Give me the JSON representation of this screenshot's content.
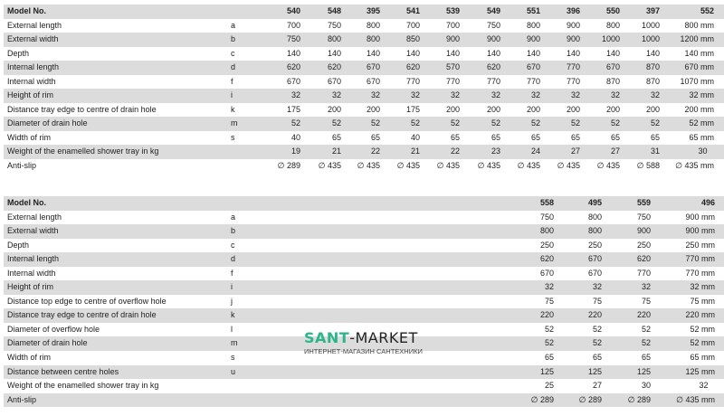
{
  "table1": {
    "rows": [
      {
        "label": "Model No.",
        "letter": "",
        "values": [
          "540",
          "548",
          "395",
          "541",
          "539",
          "549",
          "551",
          "396",
          "550",
          "397",
          "552"
        ]
      },
      {
        "label": "External length",
        "letter": "a",
        "values": [
          "700",
          "750",
          "800",
          "700",
          "700",
          "750",
          "800",
          "900",
          "800",
          "1000",
          "800 mm"
        ]
      },
      {
        "label": "External width",
        "letter": "b",
        "values": [
          "750",
          "800",
          "800",
          "850",
          "900",
          "900",
          "900",
          "900",
          "1000",
          "1000",
          "1200 mm"
        ]
      },
      {
        "label": "Depth",
        "letter": "c",
        "values": [
          "140",
          "140",
          "140",
          "140",
          "140",
          "140",
          "140",
          "140",
          "140",
          "140",
          "140 mm"
        ]
      },
      {
        "label": "Internal length",
        "letter": "d",
        "values": [
          "620",
          "620",
          "670",
          "620",
          "570",
          "620",
          "670",
          "770",
          "670",
          "870",
          "670 mm"
        ]
      },
      {
        "label": "Internal width",
        "letter": "f",
        "values": [
          "670",
          "670",
          "670",
          "770",
          "770",
          "770",
          "770",
          "770",
          "870",
          "870",
          "1070 mm"
        ]
      },
      {
        "label": "Height of rim",
        "letter": "i",
        "values": [
          "32",
          "32",
          "32",
          "32",
          "32",
          "32",
          "32",
          "32",
          "32",
          "32",
          "32 mm"
        ]
      },
      {
        "label": "Distance tray edge to centre of drain hole",
        "letter": "k",
        "values": [
          "175",
          "200",
          "200",
          "175",
          "200",
          "200",
          "200",
          "200",
          "200",
          "200",
          "200 mm"
        ]
      },
      {
        "label": "Diameter of drain hole",
        "letter": "m",
        "values": [
          "52",
          "52",
          "52",
          "52",
          "52",
          "52",
          "52",
          "52",
          "52",
          "52",
          "52 mm"
        ]
      },
      {
        "label": "Width of rim",
        "letter": "s",
        "values": [
          "40",
          "65",
          "65",
          "40",
          "65",
          "65",
          "65",
          "65",
          "65",
          "65",
          "65 mm"
        ]
      },
      {
        "label": "Weight of the enamelled shower tray in kg",
        "letter": "",
        "values": [
          "19",
          "21",
          "22",
          "21",
          "22",
          "23",
          "24",
          "27",
          "27",
          "31",
          "30   "
        ]
      },
      {
        "label": "Anti-slip",
        "letter": "",
        "values": [
          "∅ 289",
          "∅ 435",
          "∅ 435",
          "∅ 435",
          "∅ 435",
          "∅ 435",
          "∅ 435",
          "∅ 435",
          "∅ 435",
          "∅ 588",
          "∅ 435 mm"
        ]
      }
    ]
  },
  "table2": {
    "rows": [
      {
        "label": "Model No.",
        "letter": "",
        "values": [
          "558",
          "495",
          "559",
          "496"
        ]
      },
      {
        "label": "External length",
        "letter": "a",
        "values": [
          "750",
          "800",
          "750",
          "900 mm"
        ]
      },
      {
        "label": "External width",
        "letter": "b",
        "values": [
          "800",
          "800",
          "900",
          "900 mm"
        ]
      },
      {
        "label": "Depth",
        "letter": "c",
        "values": [
          "250",
          "250",
          "250",
          "250 mm"
        ]
      },
      {
        "label": "Internal length",
        "letter": "d",
        "values": [
          "620",
          "670",
          "620",
          "770 mm"
        ]
      },
      {
        "label": "Internal width",
        "letter": "f",
        "values": [
          "670",
          "670",
          "770",
          "770 mm"
        ]
      },
      {
        "label": "Height of rim",
        "letter": "i",
        "values": [
          "32",
          "32",
          "32",
          "32 mm"
        ]
      },
      {
        "label": "Distance top edge to centre of overflow hole",
        "letter": "j",
        "values": [
          "75",
          "75",
          "75",
          "75 mm"
        ]
      },
      {
        "label": "Distance tray edge to centre of drain hole",
        "letter": "k",
        "values": [
          "220",
          "220",
          "220",
          "220 mm"
        ]
      },
      {
        "label": "Diameter of overflow hole",
        "letter": "l",
        "values": [
          "52",
          "52",
          "52",
          "52 mm"
        ]
      },
      {
        "label": "Diameter of drain hole",
        "letter": "m",
        "values": [
          "52",
          "52",
          "52",
          "52 mm"
        ]
      },
      {
        "label": "Width of rim",
        "letter": "s",
        "values": [
          "65",
          "65",
          "65",
          "65 mm"
        ]
      },
      {
        "label": "Distance between centre holes",
        "letter": "u",
        "values": [
          "125",
          "125",
          "125",
          "125 mm"
        ]
      },
      {
        "label": "Weight of the enamelled shower tray in kg",
        "letter": "",
        "values": [
          "25",
          "27",
          "30",
          "32   "
        ]
      },
      {
        "label": "Anti-slip",
        "letter": "",
        "values": [
          "∅ 289",
          "∅ 289",
          "∅ 289",
          "∅ 435 mm"
        ]
      }
    ]
  },
  "watermark": {
    "brand_a": "SANT",
    "brand_b": "-MARKET",
    "tagline": "ИНТЕРНЕТ-МАГАЗИН САНТЕХНИКИ"
  },
  "colors": {
    "stripe": "#dcdcdc",
    "brand": "#2bb58a"
  }
}
